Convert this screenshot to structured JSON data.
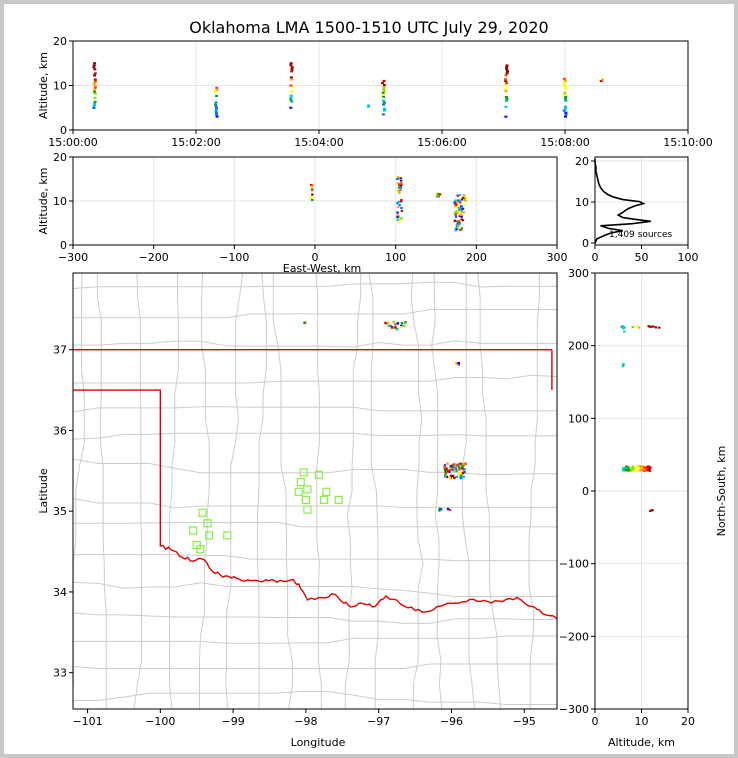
{
  "title": "Oklahoma LMA 1500-1510 UTC July 29, 2020",
  "colors": {
    "grid": "#e6e6e6",
    "state_border": "#cccccc",
    "ok_border": "#e00000",
    "station": "#88ee44",
    "spine": "#000000",
    "scale": [
      "#0000ff",
      "#0066ff",
      "#00aaff",
      "#00c8c8",
      "#00a000",
      "#88dd00",
      "#ffff00",
      "#ffa000",
      "#ff4000",
      "#cc0000",
      "#880000"
    ]
  },
  "chart_data": [
    {
      "id": "time-height",
      "type": "scatter",
      "xlabel": "",
      "ylabel": "Altitude, km",
      "xticks": [
        "15:00:00",
        "15:02:00",
        "15:04:00",
        "15:06:00",
        "15:08:00",
        "15:10:00"
      ],
      "xlim": [
        0,
        10
      ],
      "ylim": [
        0,
        20
      ],
      "yticks": [
        "0",
        "10",
        "20"
      ],
      "clusters": [
        {
          "x": 0.35,
          "ymin": 4.5,
          "ymax": 15.0
        },
        {
          "x": 2.33,
          "ymin": 3.0,
          "ymax": 9.5
        },
        {
          "x": 3.55,
          "ymin": 5.0,
          "ymax": 15.0
        },
        {
          "x": 4.8,
          "ymin": 5.0,
          "ymax": 5.5
        },
        {
          "x": 5.05,
          "ymin": 3.5,
          "ymax": 11.0
        },
        {
          "x": 7.05,
          "ymin": 3.0,
          "ymax": 14.5
        },
        {
          "x": 8.0,
          "ymin": 3.0,
          "ymax": 11.5
        },
        {
          "x": 8.6,
          "ymin": 11.0,
          "ymax": 11.3
        }
      ]
    },
    {
      "id": "ew-height",
      "type": "scatter",
      "xlabel": "East-West, km",
      "ylabel": "Altitude, km",
      "xlim": [
        -300,
        300
      ],
      "xticks": [
        "−300",
        "−200",
        "−100",
        "0",
        "100",
        "200",
        "300"
      ],
      "ylim": [
        0,
        20
      ],
      "yticks": [
        "0",
        "10",
        "20"
      ],
      "clusters": [
        {
          "x": -4,
          "ymin": 10,
          "ymax": 14.5,
          "w": 3
        },
        {
          "x": 105,
          "ymin": 5,
          "ymax": 15.5,
          "w": 6
        },
        {
          "x": 153,
          "ymin": 11,
          "ymax": 11.8,
          "w": 6
        },
        {
          "x": 180,
          "ymin": 3,
          "ymax": 11.5,
          "w": 14
        }
      ]
    },
    {
      "id": "height-histogram",
      "type": "line",
      "xlim": [
        0,
        100
      ],
      "xticks": [
        "0",
        "50",
        "100"
      ],
      "ylim": [
        0,
        20
      ],
      "yticks": [
        "0",
        "10",
        "20"
      ],
      "annotation": "1,409 sources",
      "profile": [
        [
          0,
          0
        ],
        [
          2,
          1
        ],
        [
          12,
          2
        ],
        [
          18,
          2.5
        ],
        [
          30,
          3
        ],
        [
          14,
          3.6
        ],
        [
          6,
          4.2
        ],
        [
          40,
          4.7
        ],
        [
          60,
          5.3
        ],
        [
          42,
          5.8
        ],
        [
          30,
          6.2
        ],
        [
          25,
          6.8
        ],
        [
          30,
          7.5
        ],
        [
          35,
          8.3
        ],
        [
          42,
          9.0
        ],
        [
          52,
          9.6
        ],
        [
          48,
          10.1
        ],
        [
          30,
          10.6
        ],
        [
          20,
          11.2
        ],
        [
          14,
          11.8
        ],
        [
          9,
          12.6
        ],
        [
          6,
          13.5
        ],
        [
          4,
          14.5
        ],
        [
          3,
          15.5
        ],
        [
          2,
          16.5
        ],
        [
          1,
          17.5
        ],
        [
          1,
          18.5
        ],
        [
          0,
          19.5
        ],
        [
          0,
          20.5
        ]
      ]
    },
    {
      "id": "plan-view",
      "type": "scatter",
      "xlabel": "Longitude",
      "ylabel": "Latitude",
      "xlim": [
        -101.2,
        -94.55
      ],
      "xticks": [
        "−101",
        "−100",
        "−99",
        "−98",
        "−97",
        "−96",
        "−95"
      ],
      "ylim": [
        32.55,
        37.95
      ],
      "yticks": [
        "33",
        "34",
        "35",
        "36",
        "37"
      ],
      "stations": [
        [
          -99.42,
          34.98
        ],
        [
          -99.35,
          34.85
        ],
        [
          -99.55,
          34.76
        ],
        [
          -99.33,
          34.7
        ],
        [
          -99.08,
          34.7
        ],
        [
          -99.5,
          34.58
        ],
        [
          -99.45,
          34.53
        ],
        [
          -98.03,
          35.48
        ],
        [
          -97.82,
          35.45
        ],
        [
          -98.07,
          35.36
        ],
        [
          -97.98,
          35.27
        ],
        [
          -98.1,
          35.24
        ],
        [
          -97.72,
          35.24
        ],
        [
          -98.0,
          35.14
        ],
        [
          -97.75,
          35.14
        ],
        [
          -97.55,
          35.14
        ],
        [
          -97.98,
          35.02
        ]
      ],
      "clusters": [
        {
          "lon": -95.95,
          "lat": 35.5,
          "dlon": 0.3,
          "dlat": 0.18,
          "n": 60
        },
        {
          "lon": -96.8,
          "lat": 37.3,
          "dlon": 0.35,
          "dlat": 0.1,
          "n": 18
        },
        {
          "lon": -95.92,
          "lat": 36.82,
          "dlon": 0.05,
          "dlat": 0.06,
          "n": 5
        },
        {
          "lon": -96.1,
          "lat": 35.02,
          "dlon": 0.2,
          "dlat": 0.02,
          "n": 6
        },
        {
          "lon": -98.02,
          "lat": 37.35,
          "dlon": 0.02,
          "dlat": 0.05,
          "n": 2
        }
      ]
    },
    {
      "id": "height-ns",
      "type": "scatter",
      "xlabel": "Altitude, km",
      "ylabel": "North-South, km",
      "xlim": [
        0,
        20
      ],
      "xticks": [
        "0",
        "10",
        "20"
      ],
      "ylim": [
        -300,
        300
      ],
      "yticks": [
        "−300",
        "−200",
        "−100",
        "0",
        "100",
        "200",
        "300"
      ],
      "clusters": [
        {
          "x": 9,
          "y": 31,
          "dx": 6,
          "dy": 7,
          "n": 70
        },
        {
          "x": 11,
          "y": 226,
          "dx": 6,
          "dy": 3,
          "n": 12
        },
        {
          "x": 6,
          "y": 223,
          "dx": 1,
          "dy": 10,
          "n": 6
        },
        {
          "x": 6,
          "y": 173,
          "dx": 0.5,
          "dy": 3,
          "n": 3
        },
        {
          "x": 12,
          "y": -27,
          "dx": 1.2,
          "dy": 1.5,
          "n": 4
        }
      ]
    }
  ]
}
